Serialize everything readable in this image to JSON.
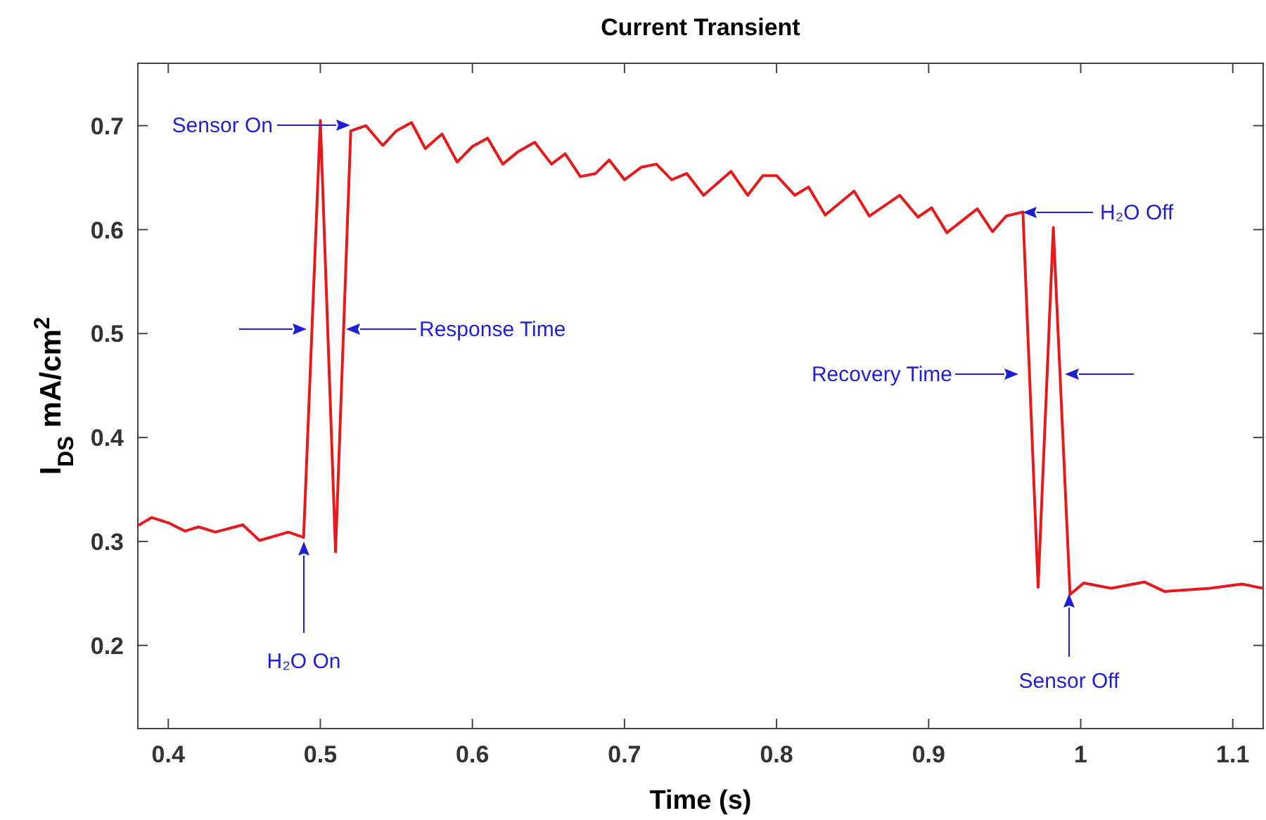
{
  "chart_data": {
    "type": "line",
    "title": "Current Transient",
    "xlabel": "Time (s)",
    "ylabel": "I$_{DS}$ mA/cm$^{2}$",
    "xlim": [
      0.38,
      1.12
    ],
    "ylim": [
      0.12,
      0.76
    ],
    "xticks": [
      0.4,
      0.5,
      0.6,
      0.7,
      0.8,
      0.9,
      1,
      1.1
    ],
    "yticks": [
      0.2,
      0.3,
      0.4,
      0.5,
      0.6,
      0.7
    ],
    "grid": false,
    "line_style": "solid",
    "series": [
      {
        "color": "#e41a1c",
        "x": [
          0.381,
          0.389,
          0.4,
          0.411,
          0.42,
          0.431,
          0.449,
          0.46,
          0.479,
          0.489,
          0.5,
          0.51,
          0.52,
          0.53,
          0.541,
          0.55,
          0.56,
          0.569,
          0.58,
          0.59,
          0.6,
          0.61,
          0.62,
          0.63,
          0.641,
          0.652,
          0.661,
          0.671,
          0.681,
          0.69,
          0.7,
          0.711,
          0.721,
          0.731,
          0.741,
          0.752,
          0.77,
          0.781,
          0.791,
          0.8,
          0.812,
          0.821,
          0.832,
          0.851,
          0.861,
          0.881,
          0.893,
          0.902,
          0.912,
          0.932,
          0.942,
          0.951,
          0.962,
          0.972,
          0.982,
          0.993,
          1.002,
          1.02,
          1.042,
          1.055,
          1.085,
          1.106,
          1.12
        ],
        "values": [
          0.316,
          0.323,
          0.318,
          0.31,
          0.314,
          0.309,
          0.316,
          0.301,
          0.309,
          0.304,
          0.705,
          0.29,
          0.695,
          0.7,
          0.681,
          0.695,
          0.703,
          0.678,
          0.692,
          0.665,
          0.68,
          0.688,
          0.663,
          0.675,
          0.684,
          0.663,
          0.673,
          0.651,
          0.654,
          0.667,
          0.648,
          0.66,
          0.663,
          0.648,
          0.654,
          0.633,
          0.656,
          0.633,
          0.652,
          0.652,
          0.633,
          0.641,
          0.614,
          0.637,
          0.613,
          0.633,
          0.612,
          0.621,
          0.597,
          0.62,
          0.598,
          0.613,
          0.617,
          0.256,
          0.602,
          0.249,
          0.26,
          0.255,
          0.261,
          0.252,
          0.255,
          0.259,
          0.255
        ]
      }
    ],
    "annotations": [
      "Sensor On",
      "Response Time",
      "H₂O On",
      "H₂O Off",
      "Recovery Time",
      "Sensor Off"
    ]
  }
}
